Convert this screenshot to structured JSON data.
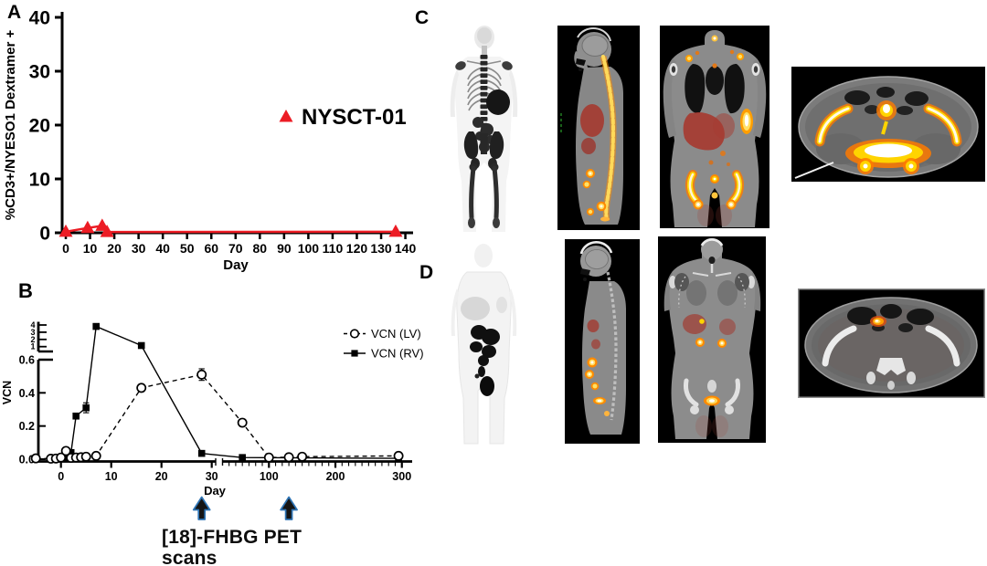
{
  "panels": {
    "a": "A",
    "b": "B",
    "c": "C",
    "d": "D"
  },
  "colors": {
    "series_red": "#EC1C24",
    "arrow_blue": "#2E74B5",
    "hot_white": "#FFFFFF",
    "hot_yellow": "#FFD400",
    "hot_orange": "#FF7A00"
  },
  "chart_data": [
    {
      "id": "panel-a-dextramer",
      "type": "line",
      "title": "",
      "xlabel": "Day",
      "ylabel": "%CD3+/NYESO1 Dextramer +",
      "xlim": [
        0,
        140
      ],
      "ylim": [
        0,
        40
      ],
      "xticks": [
        0,
        10,
        20,
        30,
        40,
        50,
        60,
        70,
        80,
        90,
        100,
        110,
        120,
        130,
        140
      ],
      "yticks": [
        0,
        10,
        20,
        30,
        40
      ],
      "grid": false,
      "legend_position": "center-right",
      "legend": [
        {
          "label": "NYSCT-01",
          "marker": "triangle-filled",
          "color": "#EC1C24"
        }
      ],
      "series": [
        {
          "name": "NYSCT-01",
          "marker": "triangle-filled",
          "line": "solid",
          "color": "#EC1C24",
          "x": [
            0,
            9,
            15,
            17,
            136
          ],
          "y": [
            0.2,
            0.9,
            1.3,
            0.15,
            0.2
          ]
        }
      ]
    },
    {
      "id": "panel-b-vcn",
      "type": "line",
      "title": "",
      "xlabel": "Day",
      "ylabel": "VCN",
      "x_axis": {
        "segments": [
          {
            "domain": [
              -6,
              30.5
            ],
            "ticks": [
              0,
              10,
              20,
              30
            ]
          },
          {
            "domain": [
              35,
              310
            ],
            "ticks": [
              100,
              200,
              300
            ],
            "minor_from": 40,
            "minor_to": 300,
            "minor_step": 10
          }
        ],
        "broken": true
      },
      "y_axis": {
        "segments": [
          {
            "domain": [
              0,
              0.6
            ],
            "ticks": [
              0,
              0.2,
              0.4,
              0.6
            ]
          },
          {
            "domain": [
              1,
              4
            ],
            "ticks": [
              1,
              2,
              3,
              4
            ]
          }
        ],
        "broken": true
      },
      "grid": false,
      "legend_position": "top-right",
      "legend": [
        {
          "label": "VCN (LV)",
          "marker": "circle-open",
          "line": "dashed"
        },
        {
          "label": "VCN (RV)",
          "marker": "square-filled",
          "line": "solid"
        }
      ],
      "series": [
        {
          "name": "VCN (RV)",
          "marker": "square-filled",
          "line": "solid",
          "color": "#000000",
          "x": [
            -1,
            0,
            1,
            2,
            3,
            5,
            7,
            16,
            28,
            60,
            295
          ],
          "y": [
            0.004,
            0.004,
            0.006,
            0.04,
            0.26,
            0.31,
            3.8,
            1.15,
            0.035,
            0.01,
            0.005
          ],
          "err": [
            0,
            0,
            0,
            0,
            0,
            0.03,
            0.15,
            0,
            0,
            0,
            0
          ]
        },
        {
          "name": "VCN (LV)",
          "marker": "circle-open",
          "line": "dashed",
          "color": "#000000",
          "x": [
            -5,
            -2,
            -1,
            0,
            1,
            2,
            3,
            4,
            5,
            7,
            16,
            28,
            60,
            100,
            130,
            150,
            295
          ],
          "y": [
            0.005,
            0.003,
            0.004,
            0.01,
            0.05,
            0.008,
            0.01,
            0.012,
            0.015,
            0.02,
            0.43,
            0.51,
            0.22,
            0.01,
            0.012,
            0.015,
            0.02
          ],
          "err": [
            0,
            0,
            0,
            0,
            0,
            0,
            0,
            0,
            0,
            0,
            0,
            0.035,
            0.02,
            0,
            0,
            0,
            0
          ]
        }
      ]
    }
  ],
  "annotations": {
    "pet_scan_label_line1": "[18]-FHBG PET",
    "pet_scan_label_line2": "scans",
    "arrow_days": [
      28,
      130
    ]
  },
  "scan_panels": {
    "c": {
      "images": [
        "mip-pet",
        "sagittal-fused-pet-ct",
        "coronal-fused-pet-ct",
        "axial-pelvis-fused-pet-ct"
      ]
    },
    "d": {
      "images": [
        "mip-pet",
        "sagittal-fused-pet-ct",
        "coronal-fused-pet-ct",
        "axial-pelvis-fused-pet-ct"
      ]
    }
  }
}
